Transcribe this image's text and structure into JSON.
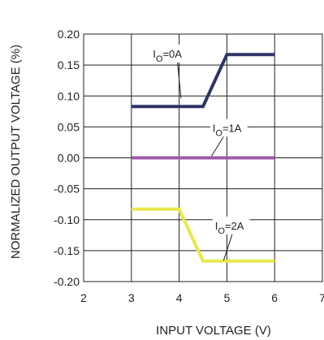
{
  "chart_data": {
    "type": "line",
    "xlabel": "INPUT VOLTAGE (V)",
    "ylabel": "NORMALIZED OUTPUT VOLTAGE (%)",
    "xlim": [
      2,
      7
    ],
    "ylim": [
      -0.2,
      0.2
    ],
    "xticks": [
      "2",
      "3",
      "4",
      "5",
      "6",
      "7"
    ],
    "yticks": [
      "0.20",
      "0.15",
      "0.10",
      "0.05",
      "0.00",
      "-0.05",
      "-0.10",
      "-0.15",
      "-0.20"
    ],
    "grid": true,
    "series": [
      {
        "label_main": "I",
        "label_sub": "O",
        "label_rest": "=0A",
        "color": "#2e3466",
        "x": [
          3,
          4,
          4.5,
          5,
          6
        ],
        "y": [
          0.083,
          0.083,
          0.083,
          0.167,
          0.167
        ]
      },
      {
        "label_main": "I",
        "label_sub": "O",
        "label_rest": "=1A",
        "color": "#a05aa8",
        "x": [
          3,
          6
        ],
        "y": [
          0.0,
          0.0
        ]
      },
      {
        "label_main": "I",
        "label_sub": "O",
        "label_rest": "=2A",
        "color": "#e8e84a",
        "x": [
          3,
          4,
          4.5,
          5,
          6
        ],
        "y": [
          -0.083,
          -0.083,
          -0.167,
          -0.167,
          -0.167
        ]
      }
    ]
  }
}
